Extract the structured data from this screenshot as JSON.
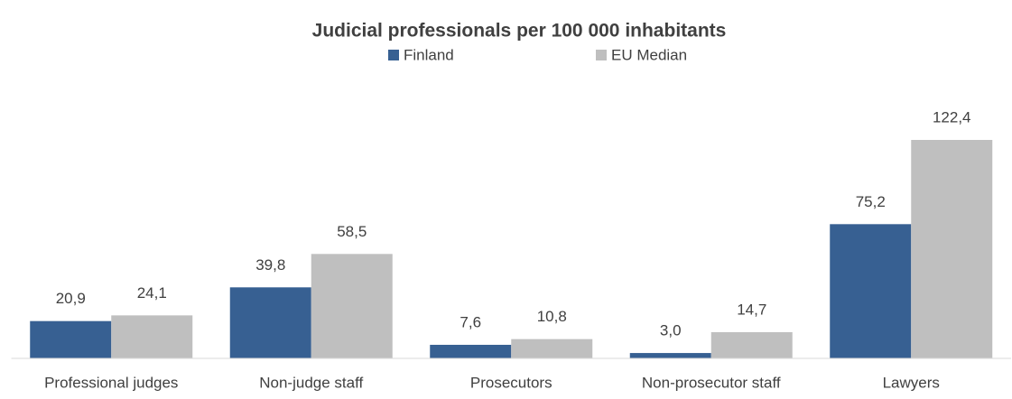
{
  "chart_data": {
    "type": "bar",
    "title": "Judicial professionals per 100 000 inhabitants",
    "categories": [
      "Professional judges",
      "Non-judge staff",
      "Prosecutors",
      "Non-prosecutor staff",
      "Lawyers"
    ],
    "series": [
      {
        "name": "Finland",
        "color": "#376092",
        "values": [
          20.9,
          39.8,
          7.6,
          3.0,
          75.2
        ],
        "value_labels": [
          "20,9",
          "39,8",
          "7,6",
          "3,0",
          "75,2"
        ]
      },
      {
        "name": "EU Median",
        "color": "#bfbfbf",
        "values": [
          24.1,
          58.5,
          10.8,
          14.7,
          122.4
        ],
        "value_labels": [
          "24,1",
          "58,5",
          "10,8",
          "14,7",
          "122,4"
        ]
      }
    ],
    "legend": "top"
  }
}
